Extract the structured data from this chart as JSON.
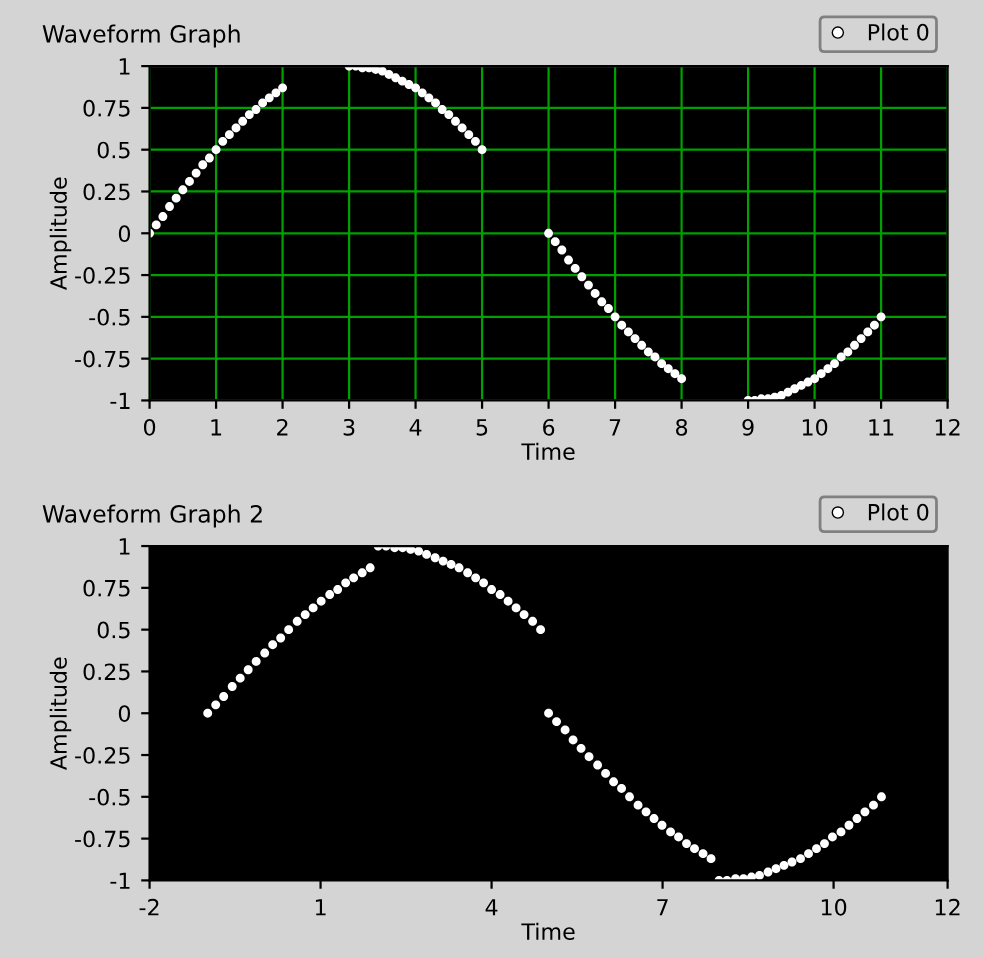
{
  "chart_data": [
    {
      "type": "scatter",
      "title": "Waveform Graph",
      "xlabel": "Time",
      "ylabel": "Amplitude",
      "xlim": [
        0,
        12
      ],
      "xticks": [
        0,
        1,
        2,
        3,
        4,
        5,
        6,
        7,
        8,
        9,
        10,
        11,
        12
      ],
      "ylim": [
        -1,
        1
      ],
      "yticks": [
        -1,
        -0.75,
        -0.5,
        -0.25,
        0,
        0.25,
        0.5,
        0.75,
        1
      ],
      "grid": true,
      "legend": "top right",
      "marker": "circle",
      "series": [
        {
          "name": "Plot 0",
          "color": "#ffffff",
          "x": [
            0,
            0.1,
            0.2,
            0.3,
            0.4,
            0.5,
            0.6,
            0.7,
            0.8,
            0.9,
            1,
            1.1,
            1.2,
            1.3,
            1.4,
            1.5,
            1.6,
            1.7,
            1.8,
            1.9,
            2,
            3,
            3.1,
            3.2,
            3.3,
            3.4,
            3.5,
            3.6,
            3.7,
            3.8,
            3.9,
            4,
            4.1,
            4.2,
            4.3,
            4.4,
            4.5,
            4.6,
            4.7,
            4.8,
            4.9,
            5,
            6,
            6.1,
            6.2,
            6.3,
            6.4,
            6.5,
            6.6,
            6.7,
            6.8,
            6.9,
            7,
            7.1,
            7.2,
            7.3,
            7.4,
            7.5,
            7.6,
            7.7,
            7.8,
            7.9,
            8,
            9,
            9.1,
            9.2,
            9.3,
            9.4,
            9.5,
            9.6,
            9.7,
            9.8,
            9.9,
            10,
            10.1,
            10.2,
            10.3,
            10.4,
            10.5,
            10.6,
            10.7,
            10.8,
            10.9,
            11
          ],
          "values": [
            0,
            0.05,
            0.1,
            0.16,
            0.21,
            0.26,
            0.31,
            0.36,
            0.41,
            0.45,
            0.5,
            0.55,
            0.59,
            0.63,
            0.67,
            0.71,
            0.74,
            0.78,
            0.81,
            0.84,
            0.87,
            1,
            1,
            0.99,
            0.99,
            0.98,
            0.97,
            0.95,
            0.93,
            0.91,
            0.89,
            0.87,
            0.84,
            0.81,
            0.78,
            0.74,
            0.71,
            0.67,
            0.63,
            0.59,
            0.55,
            0.5,
            0,
            -0.05,
            -0.1,
            -0.16,
            -0.21,
            -0.26,
            -0.31,
            -0.36,
            -0.41,
            -0.45,
            -0.5,
            -0.55,
            -0.59,
            -0.63,
            -0.67,
            -0.71,
            -0.74,
            -0.78,
            -0.81,
            -0.84,
            -0.87,
            -1,
            -1,
            -0.99,
            -0.99,
            -0.98,
            -0.97,
            -0.95,
            -0.93,
            -0.91,
            -0.89,
            -0.87,
            -0.84,
            -0.81,
            -0.78,
            -0.74,
            -0.71,
            -0.67,
            -0.63,
            -0.59,
            -0.55,
            -0.5
          ]
        }
      ]
    },
    {
      "type": "scatter",
      "title": "Waveform Graph 2",
      "xlabel": "Time",
      "ylabel": "Amplitude",
      "xlim": [
        -2,
        12
      ],
      "xticks": [
        -2,
        1,
        4,
        7,
        10,
        12
      ],
      "ylim": [
        -1,
        1
      ],
      "yticks": [
        -1,
        -0.75,
        -0.5,
        -0.25,
        0,
        0.25,
        0.5,
        0.75,
        1
      ],
      "grid": false,
      "legend": "top right",
      "marker": "circle",
      "series": [
        {
          "name": "Plot 0",
          "color": "#ffffff",
          "x": [
            -0.98,
            -0.84,
            -0.7,
            -0.55,
            -0.41,
            -0.27,
            -0.13,
            0.02,
            0.16,
            0.3,
            0.44,
            0.59,
            0.73,
            0.87,
            1.01,
            1.16,
            1.3,
            1.44,
            1.58,
            1.73,
            1.87,
            2.01,
            2.15,
            2.3,
            2.44,
            2.58,
            2.72,
            2.86,
            3.01,
            3.15,
            3.29,
            3.43,
            3.58,
            3.72,
            3.86,
            4,
            4.15,
            4.29,
            4.43,
            4.57,
            4.72,
            4.86,
            5,
            5.14,
            5.29,
            5.43,
            5.57,
            5.71,
            5.86,
            6,
            6.14,
            6.28,
            6.42,
            6.57,
            6.71,
            6.85,
            6.99,
            7.14,
            7.28,
            7.42,
            7.56,
            7.71,
            7.85,
            7.99,
            8.13,
            8.28,
            8.42,
            8.56,
            8.7,
            8.85,
            8.99,
            9.13,
            9.27,
            9.42,
            9.56,
            9.7,
            9.84,
            9.98,
            10.13,
            10.27,
            10.41,
            10.55,
            10.7,
            10.84
          ],
          "values": [
            0,
            0.05,
            0.1,
            0.16,
            0.21,
            0.26,
            0.31,
            0.36,
            0.41,
            0.45,
            0.5,
            0.55,
            0.59,
            0.63,
            0.67,
            0.71,
            0.74,
            0.78,
            0.81,
            0.84,
            0.87,
            1,
            1,
            0.99,
            0.99,
            0.98,
            0.97,
            0.95,
            0.93,
            0.91,
            0.89,
            0.87,
            0.84,
            0.81,
            0.78,
            0.74,
            0.71,
            0.67,
            0.63,
            0.59,
            0.55,
            0.5,
            0,
            -0.05,
            -0.1,
            -0.16,
            -0.21,
            -0.26,
            -0.31,
            -0.36,
            -0.41,
            -0.45,
            -0.5,
            -0.55,
            -0.59,
            -0.63,
            -0.67,
            -0.71,
            -0.74,
            -0.78,
            -0.81,
            -0.84,
            -0.87,
            -1,
            -1,
            -0.99,
            -0.99,
            -0.98,
            -0.97,
            -0.95,
            -0.93,
            -0.91,
            -0.89,
            -0.87,
            -0.84,
            -0.81,
            -0.78,
            -0.74,
            -0.71,
            -0.67,
            -0.63,
            -0.59,
            -0.55,
            -0.5
          ]
        }
      ]
    }
  ]
}
